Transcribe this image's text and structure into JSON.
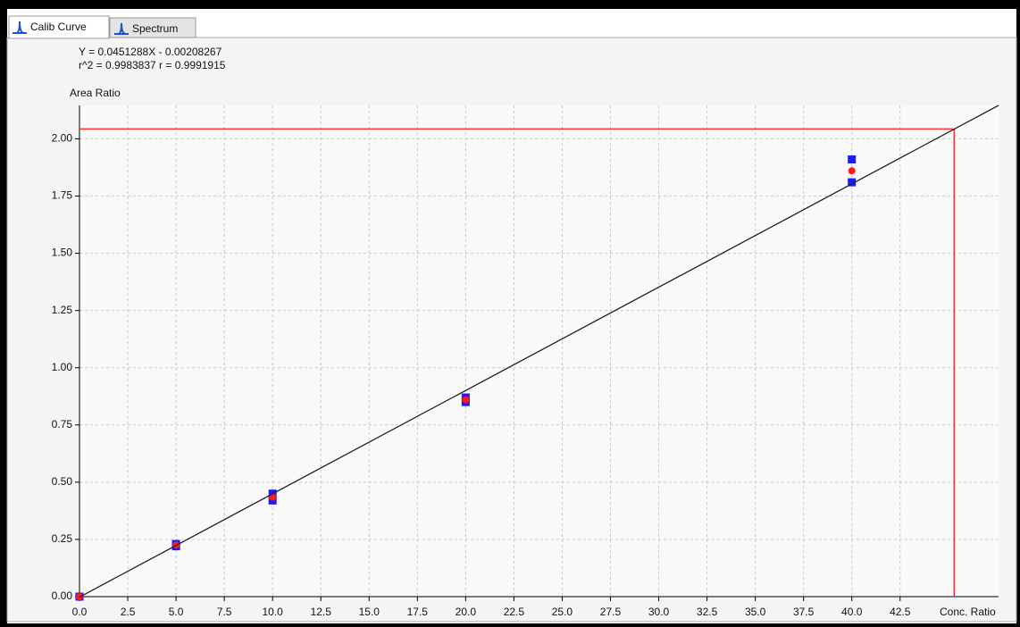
{
  "tabs": [
    "Calib Curve",
    "Spectrum"
  ],
  "chart_data": {
    "type": "scatter",
    "equation": "Y = 0.0451288X - 0.00208267",
    "stats": "r^2 = 0.9983837  r = 0.9991915",
    "y_label": "Area Ratio",
    "x_label": "Conc. Ratio",
    "xlim": [
      0,
      47.6
    ],
    "ylim": [
      0,
      2.146
    ],
    "xticks": [
      {
        "value": 0,
        "label": "0.0"
      },
      {
        "value": 2.5,
        "label": "2.5"
      },
      {
        "value": 5,
        "label": "5.0"
      },
      {
        "value": 7.5,
        "label": "7.5"
      },
      {
        "value": 10,
        "label": "10.0"
      },
      {
        "value": 12.5,
        "label": "12.5"
      },
      {
        "value": 15,
        "label": "15.0"
      },
      {
        "value": 17.5,
        "label": "17.5"
      },
      {
        "value": 20,
        "label": "20.0"
      },
      {
        "value": 22.5,
        "label": "22.5"
      },
      {
        "value": 25,
        "label": "25.0"
      },
      {
        "value": 27.5,
        "label": "27.5"
      },
      {
        "value": 30,
        "label": "30.0"
      },
      {
        "value": 32.5,
        "label": "32.5"
      },
      {
        "value": 35,
        "label": "35.0"
      },
      {
        "value": 37.5,
        "label": "37.5"
      },
      {
        "value": 40,
        "label": "40.0"
      },
      {
        "value": 42.5,
        "label": "42.5"
      }
    ],
    "yticks": [
      {
        "value": 0,
        "label": "0.00"
      },
      {
        "value": 0.25,
        "label": "0.25"
      },
      {
        "value": 0.5,
        "label": "0.50"
      },
      {
        "value": 0.75,
        "label": "0.75"
      },
      {
        "value": 1,
        "label": "1.00"
      },
      {
        "value": 1.25,
        "label": "1.25"
      },
      {
        "value": 1.5,
        "label": "1.50"
      },
      {
        "value": 1.75,
        "label": "1.75"
      },
      {
        "value": 2,
        "label": "2.00"
      }
    ],
    "grid": true,
    "series": [
      {
        "mode": "markers",
        "marker": "square",
        "color": "#1a1aff",
        "x": [
          0,
          5,
          5,
          10,
          10,
          20,
          20,
          40,
          40
        ],
        "values": [
          0,
          0.23,
          0.22,
          0.45,
          0.42,
          0.87,
          0.85,
          1.91,
          1.81
        ]
      },
      {
        "mode": "markers",
        "marker": "circle",
        "color": "#ff1a1a",
        "x": [
          0,
          5,
          10,
          20,
          40
        ],
        "values": [
          0,
          0.225,
          0.435,
          0.86,
          1.86
        ]
      },
      {
        "mode": "line",
        "color": "#222222",
        "x": [
          0,
          47.6
        ],
        "values": [
          -0.002,
          2.146
        ]
      }
    ],
    "crosshair": {
      "x": 45.3,
      "y": 2.043,
      "color": "#ff3030"
    }
  }
}
